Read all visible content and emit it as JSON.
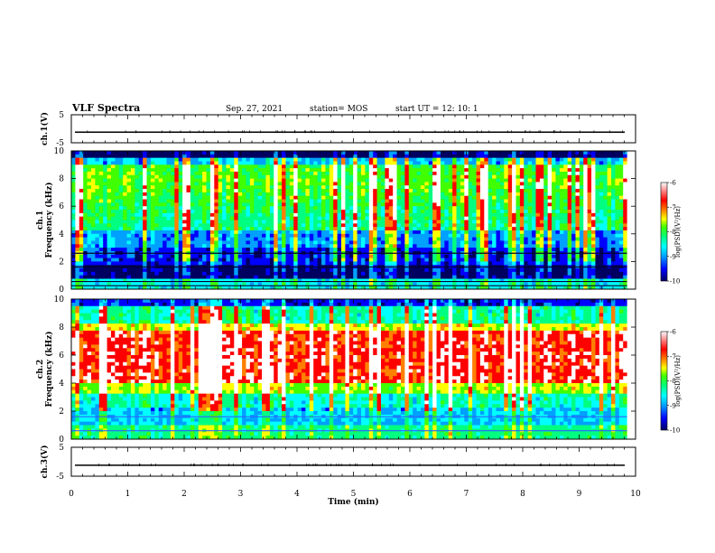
{
  "header": {
    "title": "VLF Spectra",
    "date": "Sep. 27, 2021",
    "station": "station= MOS",
    "start_ut": "start  UT =   12: 10: 1"
  },
  "chart_data": [
    {
      "type": "line",
      "name": "ch1-waveform",
      "ylabel": "ch.1(V)",
      "ylim": [
        -5,
        5
      ],
      "yticks": [
        "5",
        "-5"
      ],
      "xlim": [
        0,
        10
      ],
      "level": -1.2
    },
    {
      "type": "heatmap",
      "name": "ch1-spectrogram",
      "ylabel": "ch.1\nFrequency (kHz)",
      "ylim": [
        0,
        10
      ],
      "yticks": [
        "0",
        "2",
        "4",
        "6",
        "8",
        "10"
      ],
      "xlim": [
        0,
        9.85
      ],
      "colorbar": {
        "label": "log(PSD)(V²/Hz)",
        "range": [
          -10,
          -6
        ],
        "ticks": [
          "-6",
          "-7",
          "-8",
          "-9",
          "-10"
        ]
      }
    },
    {
      "type": "heatmap",
      "name": "ch2-spectrogram",
      "ylabel": "ch.2\nFrequency (kHz)",
      "ylim": [
        0,
        10
      ],
      "yticks": [
        "0",
        "2",
        "4",
        "6",
        "8",
        "10"
      ],
      "xlim": [
        0,
        9.85
      ],
      "colorbar": {
        "label": "log(PSD)(V²/Hz)",
        "range": [
          -10,
          -6
        ],
        "ticks": [
          "-6",
          "-7",
          "-8",
          "-9",
          "-10"
        ]
      }
    },
    {
      "type": "line",
      "name": "ch3-waveform",
      "ylabel": "ch.3(V)",
      "ylim": [
        -5,
        5
      ],
      "yticks": [
        "5",
        "-5"
      ],
      "xlim": [
        0,
        10
      ],
      "level": -1.2
    }
  ],
  "xaxis": {
    "label": "Time (min)",
    "ticks": [
      "0",
      "1",
      "2",
      "3",
      "4",
      "5",
      "6",
      "7",
      "8",
      "9",
      "10"
    ],
    "range": [
      0,
      10
    ]
  },
  "colors": {
    "colormap": [
      "#000060",
      "#0000ff",
      "#00a0ff",
      "#00ffff",
      "#00ff80",
      "#40ff00",
      "#ffff00",
      "#ff8000",
      "#ff0000",
      "#ffffff"
    ]
  }
}
